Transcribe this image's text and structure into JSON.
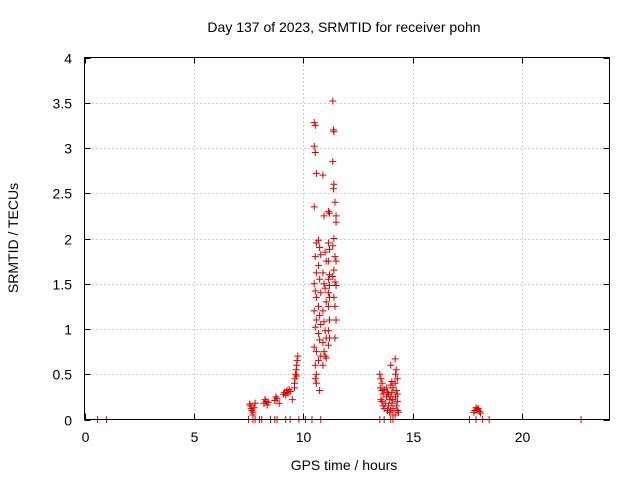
{
  "chart_data": {
    "type": "scatter",
    "title": "Day 137 of 2023, SRMTID for receiver pohn",
    "xlabel": "GPS time / hours",
    "ylabel": "SRMTID / TECUs",
    "xlim": [
      0,
      24
    ],
    "ylim": [
      0,
      4
    ],
    "xticks": [
      0,
      5,
      10,
      15,
      20
    ],
    "xtick_labels": [
      "0",
      "5",
      "10",
      "15",
      "20"
    ],
    "yticks": [
      0,
      0.5,
      1,
      1.5,
      2,
      2.5,
      3,
      3.5,
      4
    ],
    "ytick_labels": [
      "0",
      "0.5",
      "1",
      "1.5",
      "2",
      "2.5",
      "3",
      "3.5",
      "4"
    ],
    "grid": true,
    "marker": "+",
    "color": "#e00000",
    "series": [
      {
        "name": "SRMTID",
        "points": [
          [
            0.6,
            0
          ],
          [
            1.0,
            0
          ],
          [
            7.5,
            0
          ],
          [
            7.7,
            0
          ],
          [
            7.8,
            0
          ],
          [
            8.0,
            0
          ],
          [
            8.1,
            0
          ],
          [
            8.5,
            0
          ],
          [
            8.7,
            0
          ],
          [
            8.8,
            0
          ],
          [
            9.2,
            0
          ],
          [
            9.4,
            0
          ],
          [
            9.8,
            0
          ],
          [
            10.1,
            0
          ],
          [
            10.4,
            0
          ],
          [
            10.8,
            0
          ],
          [
            13.5,
            0
          ],
          [
            13.7,
            0
          ],
          [
            14.0,
            0
          ],
          [
            14.1,
            0
          ],
          [
            17.6,
            0
          ],
          [
            17.9,
            0
          ],
          [
            18.2,
            0
          ],
          [
            18.5,
            0
          ],
          [
            22.7,
            0
          ],
          [
            7.55,
            0.17
          ],
          [
            7.6,
            0.15
          ],
          [
            7.62,
            0.12
          ],
          [
            7.65,
            0.1
          ],
          [
            7.7,
            0.08
          ],
          [
            7.75,
            0.13
          ],
          [
            7.8,
            0.18
          ],
          [
            7.7,
            0.05
          ],
          [
            8.2,
            0.18
          ],
          [
            8.25,
            0.22
          ],
          [
            8.3,
            0.2
          ],
          [
            8.35,
            0.16
          ],
          [
            8.4,
            0.19
          ],
          [
            8.7,
            0.21
          ],
          [
            8.75,
            0.25
          ],
          [
            8.8,
            0.23
          ],
          [
            8.9,
            0.18
          ],
          [
            9.1,
            0.28
          ],
          [
            9.15,
            0.3
          ],
          [
            9.2,
            0.27
          ],
          [
            9.25,
            0.32
          ],
          [
            9.3,
            0.29
          ],
          [
            9.35,
            0.33
          ],
          [
            9.4,
            0.31
          ],
          [
            9.5,
            0.22
          ],
          [
            9.6,
            0.4
          ],
          [
            9.62,
            0.45
          ],
          [
            9.65,
            0.5
          ],
          [
            9.68,
            0.55
          ],
          [
            9.7,
            0.6
          ],
          [
            9.72,
            0.65
          ],
          [
            9.75,
            0.7
          ],
          [
            9.6,
            0.35
          ],
          [
            9.7,
            0.48
          ],
          [
            10.5,
            3.28
          ],
          [
            10.55,
            3.25
          ],
          [
            10.5,
            3.02
          ],
          [
            10.55,
            2.95
          ],
          [
            10.6,
            2.72
          ],
          [
            10.5,
            2.35
          ],
          [
            10.6,
            1.95
          ],
          [
            10.55,
            1.8
          ],
          [
            10.6,
            1.62
          ],
          [
            10.5,
            1.5
          ],
          [
            10.55,
            1.42
          ],
          [
            10.6,
            1.35
          ],
          [
            10.5,
            1.2
          ],
          [
            10.6,
            1.1
          ],
          [
            10.55,
            1.02
          ],
          [
            10.5,
            0.8
          ],
          [
            10.6,
            0.75
          ],
          [
            10.55,
            0.6
          ],
          [
            10.6,
            0.5
          ],
          [
            10.55,
            0.45
          ],
          [
            10.6,
            0.4
          ],
          [
            10.7,
            1.98
          ],
          [
            10.75,
            1.9
          ],
          [
            10.8,
            1.82
          ],
          [
            10.7,
            1.7
          ],
          [
            10.75,
            1.55
          ],
          [
            10.8,
            1.4
          ],
          [
            10.7,
            1.25
          ],
          [
            10.75,
            1.15
          ],
          [
            10.8,
            1.05
          ],
          [
            10.7,
            0.95
          ],
          [
            10.75,
            0.88
          ],
          [
            10.8,
            0.7
          ],
          [
            10.7,
            0.65
          ],
          [
            10.75,
            0.32
          ],
          [
            10.9,
            2.7
          ],
          [
            10.95,
            2.25
          ],
          [
            11.0,
            1.85
          ],
          [
            11.05,
            1.75
          ],
          [
            10.9,
            1.62
          ],
          [
            10.95,
            1.5
          ],
          [
            11.0,
            1.45
          ],
          [
            11.05,
            1.3
          ],
          [
            10.9,
            1.2
          ],
          [
            10.95,
            1.08
          ],
          [
            11.0,
            0.98
          ],
          [
            11.05,
            0.9
          ],
          [
            10.9,
            0.85
          ],
          [
            10.95,
            0.75
          ],
          [
            11.0,
            0.7
          ],
          [
            11.05,
            0.68
          ],
          [
            10.9,
            0.6
          ],
          [
            11.15,
            2.3
          ],
          [
            11.2,
            2.28
          ],
          [
            11.15,
            1.95
          ],
          [
            11.2,
            1.88
          ],
          [
            11.15,
            1.75
          ],
          [
            11.2,
            1.6
          ],
          [
            11.15,
            1.55
          ],
          [
            11.2,
            1.48
          ],
          [
            11.15,
            1.4
          ],
          [
            11.2,
            1.35
          ],
          [
            11.15,
            1.25
          ],
          [
            11.2,
            1.1
          ],
          [
            11.15,
            0.98
          ],
          [
            11.2,
            0.9
          ],
          [
            11.15,
            0.82
          ],
          [
            11.35,
            3.52
          ],
          [
            11.38,
            3.2
          ],
          [
            11.4,
            3.18
          ],
          [
            11.35,
            2.85
          ],
          [
            11.4,
            2.6
          ],
          [
            11.38,
            2.55
          ],
          [
            11.45,
            2.4
          ],
          [
            11.5,
            2.25
          ],
          [
            11.5,
            2.18
          ],
          [
            11.4,
            2.0
          ],
          [
            11.35,
            1.92
          ],
          [
            11.45,
            1.8
          ],
          [
            11.5,
            1.75
          ],
          [
            11.4,
            1.65
          ],
          [
            11.35,
            1.58
          ],
          [
            11.45,
            1.52
          ],
          [
            11.5,
            1.48
          ],
          [
            11.4,
            1.35
          ],
          [
            11.45,
            1.25
          ],
          [
            11.5,
            1.1
          ],
          [
            11.45,
            0.9
          ],
          [
            13.5,
            0.5
          ],
          [
            13.55,
            0.45
          ],
          [
            13.6,
            0.4
          ],
          [
            13.52,
            0.35
          ],
          [
            13.6,
            0.32
          ],
          [
            13.65,
            0.28
          ],
          [
            13.55,
            0.22
          ],
          [
            13.6,
            0.2
          ],
          [
            13.65,
            0.15
          ],
          [
            13.7,
            0.12
          ],
          [
            13.75,
            0.18
          ],
          [
            13.8,
            0.25
          ],
          [
            13.85,
            0.3
          ],
          [
            13.7,
            0.33
          ],
          [
            13.8,
            0.35
          ],
          [
            13.9,
            0.28
          ],
          [
            13.95,
            0.22
          ],
          [
            13.9,
            0.15
          ],
          [
            13.85,
            0.1
          ],
          [
            13.95,
            0.08
          ],
          [
            14.0,
            0.6
          ],
          [
            14.05,
            0.42
          ],
          [
            14.0,
            0.38
          ],
          [
            14.1,
            0.35
          ],
          [
            14.05,
            0.3
          ],
          [
            14.0,
            0.25
          ],
          [
            14.1,
            0.22
          ],
          [
            14.05,
            0.18
          ],
          [
            14.1,
            0.12
          ],
          [
            14.0,
            0.1
          ],
          [
            14.1,
            0.05
          ],
          [
            14.2,
            0.67
          ],
          [
            14.25,
            0.55
          ],
          [
            14.22,
            0.5
          ],
          [
            14.3,
            0.45
          ],
          [
            14.2,
            0.4
          ],
          [
            14.25,
            0.32
          ],
          [
            14.3,
            0.28
          ],
          [
            14.22,
            0.25
          ],
          [
            14.3,
            0.2
          ],
          [
            14.25,
            0.15
          ],
          [
            14.3,
            0.1
          ],
          [
            14.35,
            0.08
          ],
          [
            14.2,
            0.05
          ],
          [
            17.8,
            0.08
          ],
          [
            17.85,
            0.1
          ],
          [
            17.9,
            0.13
          ],
          [
            17.95,
            0.11
          ],
          [
            18.0,
            0.12
          ],
          [
            18.05,
            0.09
          ],
          [
            18.1,
            0.07
          ]
        ]
      }
    ]
  }
}
